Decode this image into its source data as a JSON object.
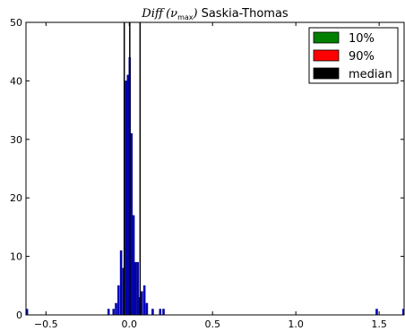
{
  "chart_data": {
    "type": "bar",
    "title": {
      "math": "Diff",
      "nu": "(ν",
      "sub": "max",
      "close": ")",
      "rest": "Saskia-Thomas"
    },
    "xlabel": "",
    "ylabel": "",
    "xlim": [
      -0.62,
      1.65
    ],
    "ylim": [
      0,
      50
    ],
    "xticks": [
      -0.5,
      0.0,
      0.5,
      1.0,
      1.5
    ],
    "xtick_labels": [
      "−0.5",
      "0.0",
      "0.5",
      "1.0",
      "1.5"
    ],
    "yticks": [
      0,
      10,
      20,
      30,
      40,
      50
    ],
    "ytick_labels": [
      "0",
      "10",
      "20",
      "30",
      "40",
      "50"
    ],
    "grid": false,
    "legend_position": "top-right",
    "bin_width": 0.0115,
    "bins": [
      {
        "x": -0.62,
        "count": 1
      },
      {
        "x": -0.13,
        "count": 1
      },
      {
        "x": -0.1,
        "count": 1
      },
      {
        "x": -0.085,
        "count": 2
      },
      {
        "x": -0.07,
        "count": 5
      },
      {
        "x": -0.055,
        "count": 11
      },
      {
        "x": -0.04,
        "count": 8
      },
      {
        "x": -0.025,
        "count": 40
      },
      {
        "x": -0.014,
        "count": 41
      },
      {
        "x": -0.003,
        "count": 44
      },
      {
        "x": 0.008,
        "count": 31
      },
      {
        "x": 0.02,
        "count": 17
      },
      {
        "x": 0.032,
        "count": 9
      },
      {
        "x": 0.045,
        "count": 9
      },
      {
        "x": 0.058,
        "count": 3
      },
      {
        "x": 0.07,
        "count": 4
      },
      {
        "x": 0.085,
        "count": 5
      },
      {
        "x": 0.1,
        "count": 2
      },
      {
        "x": 0.135,
        "count": 1
      },
      {
        "x": 0.18,
        "count": 1
      },
      {
        "x": 0.2,
        "count": 1
      },
      {
        "x": 1.48,
        "count": 1
      },
      {
        "x": 1.64,
        "count": 1
      }
    ],
    "vlines": [
      {
        "name": "10%",
        "x": -0.03,
        "color": "#008000"
      },
      {
        "name": "median",
        "x": 0.003,
        "color": "#000000"
      },
      {
        "name": "90%",
        "x": 0.065,
        "color": "#ff0000"
      }
    ],
    "legend": [
      {
        "label": "10%",
        "color": "#008000"
      },
      {
        "label": "90%",
        "color": "#ff0000"
      },
      {
        "label": "median",
        "color": "#000000"
      }
    ],
    "colors": {
      "bar_fill": "#0000bf",
      "bar_edge": "#000080",
      "vline_stroke": "#000000"
    }
  }
}
